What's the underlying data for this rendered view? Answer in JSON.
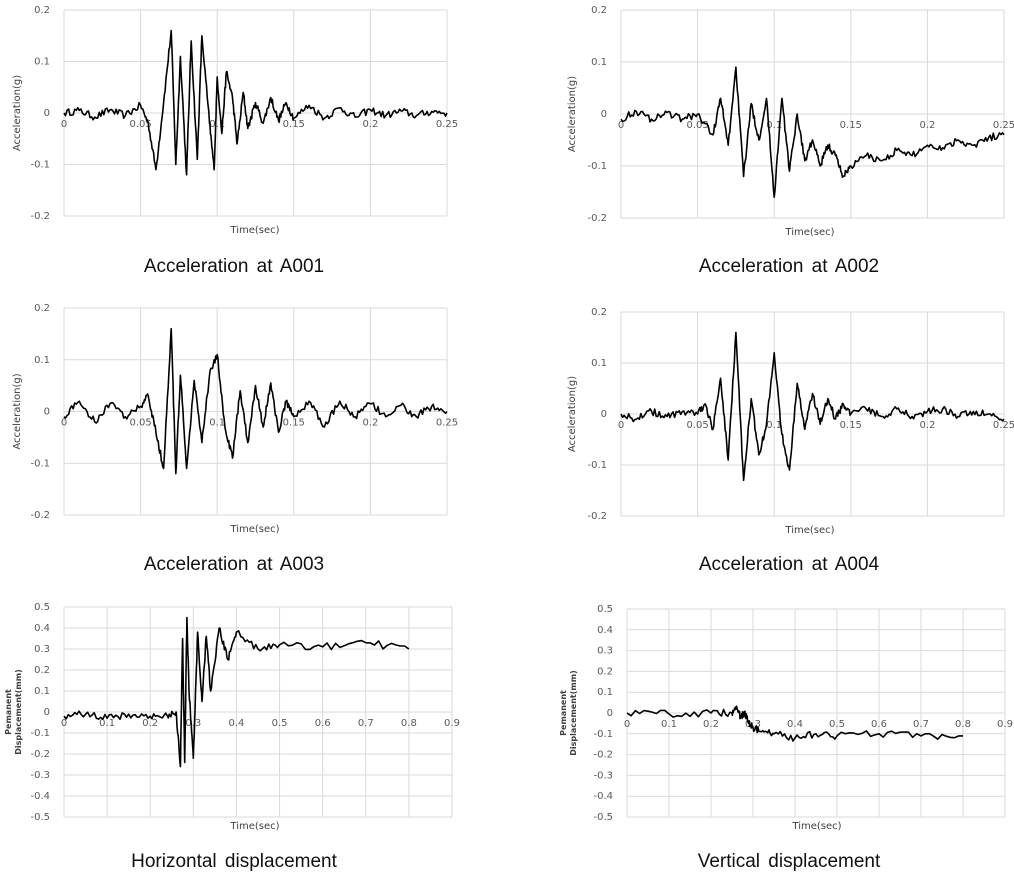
{
  "chart_data": [
    {
      "type": "line",
      "caption": "Acceleration at A001",
      "xlabel": "Time(sec)",
      "ylabel": "Acceleration(g)",
      "xlim": [
        0,
        0.25
      ],
      "ylim": [
        -0.2,
        0.2
      ],
      "xticks": [
        "0",
        "0.05",
        "0.1",
        "0.15",
        "0.2",
        "0.25"
      ],
      "yticks": [
        "0.2",
        "0.1",
        "0",
        "-0.1",
        "-0.2"
      ],
      "grid": true,
      "series": [
        {
          "values_x": [
            0,
            0.01,
            0.02,
            0.03,
            0.04,
            0.05,
            0.055,
            0.06,
            0.065,
            0.07,
            0.073,
            0.076,
            0.08,
            0.083,
            0.087,
            0.09,
            0.095,
            0.098,
            0.1,
            0.103,
            0.106,
            0.11,
            0.113,
            0.117,
            0.12,
            0.125,
            0.13,
            0.135,
            0.14,
            0.145,
            0.15,
            0.16,
            0.17,
            0.18,
            0.19,
            0.2,
            0.21,
            0.22,
            0.23,
            0.24,
            0.25
          ],
          "values": [
            0,
            0.005,
            -0.008,
            0.006,
            -0.005,
            0.015,
            -0.02,
            -0.11,
            0.02,
            0.16,
            -0.1,
            0.11,
            -0.12,
            0.14,
            -0.09,
            0.15,
            -0.02,
            -0.11,
            0.07,
            -0.04,
            0.08,
            0.03,
            -0.06,
            0.04,
            -0.03,
            0.02,
            -0.02,
            0.03,
            -0.015,
            0.02,
            -0.01,
            0.015,
            -0.01,
            0.01,
            -0.008,
            0.006,
            -0.005,
            0.004,
            -0.005,
            0.003,
            0
          ]
        }
      ]
    },
    {
      "type": "line",
      "caption": "Acceleration at A002",
      "xlabel": "Time(sec)",
      "ylabel": "Acceleration(g)",
      "xlim": [
        0,
        0.25
      ],
      "ylim": [
        -0.2,
        0.2
      ],
      "xticks": [
        "0",
        "0.05",
        "0.1",
        "0.15",
        "0.2",
        "0.25"
      ],
      "yticks": [
        "0.2",
        "0.1",
        "0",
        "-0.1",
        "-0.2"
      ],
      "grid": true,
      "series": [
        {
          "values_x": [
            0,
            0.01,
            0.02,
            0.03,
            0.04,
            0.05,
            0.06,
            0.065,
            0.07,
            0.075,
            0.08,
            0.085,
            0.09,
            0.095,
            0.1,
            0.105,
            0.11,
            0.115,
            0.12,
            0.125,
            0.13,
            0.135,
            0.14,
            0.145,
            0.15,
            0.16,
            0.17,
            0.18,
            0.19,
            0.2,
            0.21,
            0.22,
            0.23,
            0.24,
            0.25
          ],
          "values": [
            -0.01,
            0.005,
            -0.01,
            0.003,
            -0.01,
            0.0,
            -0.04,
            0.03,
            -0.06,
            0.09,
            -0.12,
            0.02,
            -0.05,
            0.03,
            -0.16,
            0.03,
            -0.11,
            0.0,
            -0.09,
            -0.05,
            -0.1,
            -0.06,
            -0.08,
            -0.12,
            -0.1,
            -0.08,
            -0.09,
            -0.07,
            -0.08,
            -0.06,
            -0.065,
            -0.05,
            -0.06,
            -0.045,
            -0.04
          ]
        }
      ]
    },
    {
      "type": "line",
      "caption": "Acceleration at A003",
      "xlabel": "Time(sec)",
      "ylabel": "Acceleration(g)",
      "xlim": [
        0,
        0.25
      ],
      "ylim": [
        -0.2,
        0.2
      ],
      "xticks": [
        "0",
        "0.05",
        "0.1",
        "0.15",
        "0.2",
        "0.25"
      ],
      "yticks": [
        "0.2",
        "0.1",
        "0",
        "-0.1",
        "-0.2"
      ],
      "grid": true,
      "series": [
        {
          "values_x": [
            0,
            0.01,
            0.02,
            0.03,
            0.04,
            0.05,
            0.055,
            0.06,
            0.065,
            0.07,
            0.073,
            0.076,
            0.08,
            0.085,
            0.09,
            0.095,
            0.1,
            0.105,
            0.11,
            0.115,
            0.12,
            0.125,
            0.13,
            0.135,
            0.14,
            0.145,
            0.15,
            0.16,
            0.17,
            0.18,
            0.19,
            0.2,
            0.21,
            0.22,
            0.23,
            0.24,
            0.25
          ],
          "values": [
            -0.01,
            0.02,
            -0.02,
            0.015,
            -0.01,
            0.01,
            0.03,
            -0.04,
            -0.11,
            0.16,
            -0.12,
            0.07,
            -0.11,
            0.06,
            -0.06,
            0.07,
            0.11,
            -0.03,
            -0.09,
            0.04,
            -0.06,
            0.05,
            -0.03,
            0.055,
            -0.04,
            0.02,
            -0.01,
            0.02,
            -0.03,
            0.02,
            -0.01,
            0.015,
            -0.01,
            0.012,
            -0.01,
            0.01,
            0.0
          ]
        }
      ]
    },
    {
      "type": "line",
      "caption": "Acceleration at A004",
      "xlabel": "Time(sec)",
      "ylabel": "Acceleration(g)",
      "xlim": [
        0,
        0.25
      ],
      "ylim": [
        -0.2,
        0.2
      ],
      "xticks": [
        "0",
        "0.05",
        "0.1",
        "0.15",
        "0.2",
        "0.25"
      ],
      "yticks": [
        "0.2",
        "0.1",
        "0",
        "-0.1",
        "-0.2"
      ],
      "grid": true,
      "series": [
        {
          "values_x": [
            0,
            0.01,
            0.02,
            0.03,
            0.04,
            0.05,
            0.055,
            0.06,
            0.065,
            0.07,
            0.075,
            0.08,
            0.085,
            0.09,
            0.095,
            0.1,
            0.105,
            0.11,
            0.115,
            0.12,
            0.125,
            0.13,
            0.135,
            0.14,
            0.145,
            0.15,
            0.16,
            0.17,
            0.18,
            0.19,
            0.2,
            0.21,
            0.22,
            0.23,
            0.24,
            0.25
          ],
          "values": [
            0.0,
            -0.01,
            0.005,
            -0.005,
            0.005,
            0.0,
            0.02,
            -0.03,
            0.07,
            -0.09,
            0.16,
            -0.13,
            0.03,
            -0.08,
            -0.02,
            0.12,
            -0.04,
            -0.11,
            0.06,
            -0.03,
            0.04,
            -0.02,
            0.03,
            -0.01,
            0.02,
            0.0,
            0.01,
            -0.005,
            0.01,
            -0.005,
            0.005,
            0.01,
            -0.005,
            0.005,
            0.0,
            -0.01
          ]
        }
      ]
    },
    {
      "type": "line",
      "caption": "Horizontal displacement",
      "xlabel": "Time(sec)",
      "ylabel_line1": "Pemanent",
      "ylabel_line2": "Displacement(mm)",
      "xlim": [
        0,
        0.9
      ],
      "ylim": [
        -0.5,
        0.5
      ],
      "xticks": [
        "0",
        "0.1",
        "0.2",
        "0.3",
        "0.4",
        "0.5",
        "0.6",
        "0.7",
        "0.8",
        "0.9"
      ],
      "yticks": [
        "0.5",
        "0.4",
        "0.3",
        "0.2",
        "0.1",
        "0",
        "-0.1",
        "-0.2",
        "-0.3",
        "-0.4",
        "-0.5"
      ],
      "grid": true,
      "series": [
        {
          "values_x": [
            0,
            0.05,
            0.1,
            0.15,
            0.2,
            0.24,
            0.26,
            0.27,
            0.275,
            0.28,
            0.285,
            0.29,
            0.3,
            0.31,
            0.32,
            0.33,
            0.34,
            0.36,
            0.38,
            0.4,
            0.45,
            0.5,
            0.6,
            0.7,
            0.8
          ],
          "values": [
            -0.02,
            -0.01,
            -0.03,
            -0.01,
            -0.02,
            -0.02,
            0.0,
            -0.26,
            0.35,
            -0.24,
            0.45,
            0.1,
            -0.22,
            0.38,
            0.05,
            0.36,
            0.1,
            0.4,
            0.25,
            0.38,
            0.3,
            0.32,
            0.31,
            0.33,
            0.3
          ]
        }
      ]
    },
    {
      "type": "line",
      "caption": "Vertical displacement",
      "xlabel": "Time(sec)",
      "ylabel_line1": "Pemanent",
      "ylabel_line2": "Displacement(mm)",
      "xlim": [
        0,
        0.9
      ],
      "ylim": [
        -0.5,
        0.5
      ],
      "xticks": [
        "0",
        "0.1",
        "0.2",
        "0.3",
        "0.4",
        "0.5",
        "0.6",
        "0.7",
        "0.8",
        "0.9"
      ],
      "yticks": [
        "0.5",
        "0.4",
        "0.3",
        "0.2",
        "0.1",
        "0",
        "-0.1",
        "-0.2",
        "-0.3",
        "-0.4",
        "-0.5"
      ],
      "grid": true,
      "series": [
        {
          "values_x": [
            0,
            0.1,
            0.2,
            0.25,
            0.26,
            0.27,
            0.28,
            0.29,
            0.3,
            0.32,
            0.35,
            0.4,
            0.45,
            0.5,
            0.6,
            0.7,
            0.8
          ],
          "values": [
            0.0,
            -0.005,
            0.0,
            0.0,
            0.03,
            -0.02,
            0.0,
            -0.05,
            -0.07,
            -0.09,
            -0.1,
            -0.12,
            -0.1,
            -0.11,
            -0.1,
            -0.11,
            -0.11
          ]
        }
      ]
    }
  ]
}
